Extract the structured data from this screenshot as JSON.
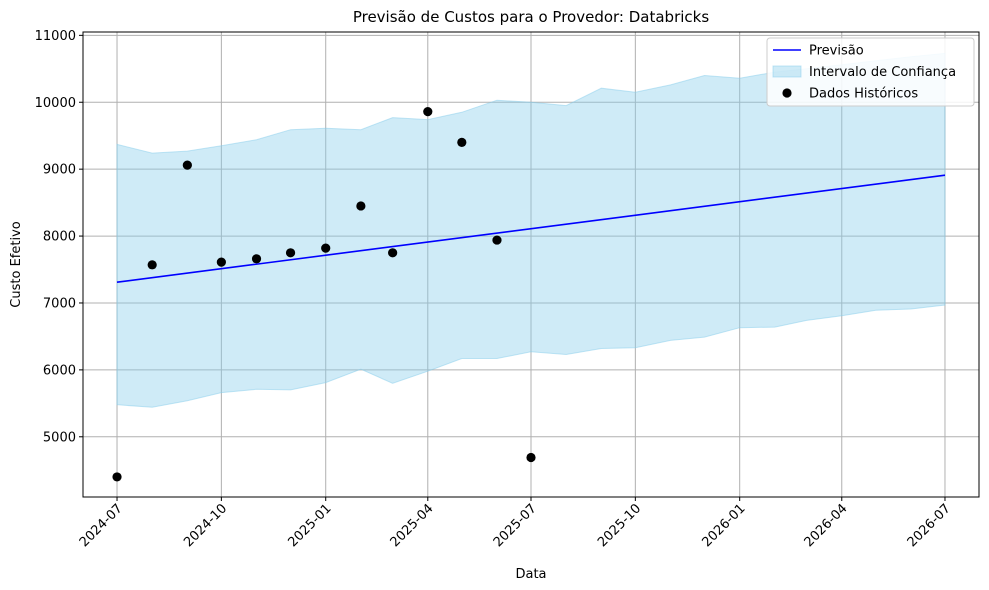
{
  "chart_data": {
    "type": "line",
    "title": "Previsão de Custos para o Provedor: Databricks",
    "xlabel": "Data",
    "ylabel": "Custo Efetivo",
    "xlim": [
      "2024-06-01",
      "2026-07-31"
    ],
    "ylim": [
      4100,
      11050
    ],
    "x_ticks": [
      "2024-07",
      "2024-10",
      "2025-01",
      "2025-04",
      "2025-07",
      "2025-10",
      "2026-01",
      "2026-04",
      "2026-07"
    ],
    "y_ticks": [
      5000,
      6000,
      7000,
      8000,
      9000,
      10000,
      11000
    ],
    "grid": true,
    "legend_position": "top-right",
    "legend": [
      "Previsão",
      "Intervalo de Confiança",
      "Dados Históricos"
    ],
    "colors": {
      "forecast_line": "#0000ff",
      "confidence_band": "#87ceeb",
      "historical_points": "#000000",
      "grid": "#b0b0b0"
    },
    "forecast": {
      "name": "Previsão",
      "x": [
        "2024-07-01",
        "2026-07-01"
      ],
      "y": [
        7310,
        8910
      ]
    },
    "confidence_interval": {
      "name": "Intervalo de Confiança",
      "x": [
        "2024-07-01",
        "2024-08-01",
        "2024-09-01",
        "2024-10-01",
        "2024-11-01",
        "2024-12-01",
        "2025-01-01",
        "2025-02-01",
        "2025-03-01",
        "2025-04-01",
        "2025-05-01",
        "2025-06-01",
        "2025-07-01",
        "2025-08-01",
        "2025-09-01",
        "2025-10-01",
        "2025-11-01",
        "2025-12-01",
        "2026-01-01",
        "2026-02-01",
        "2026-03-01",
        "2026-04-01",
        "2026-05-01",
        "2026-06-01",
        "2026-07-01"
      ],
      "upper": [
        9370,
        9240,
        9270,
        9350,
        9440,
        9590,
        9610,
        9590,
        9770,
        9740,
        9850,
        10030,
        10000,
        9950,
        10210,
        10150,
        10260,
        10400,
        10360,
        10450,
        10500,
        10560,
        10620,
        10680,
        10730
      ],
      "lower": [
        5480,
        5440,
        5540,
        5660,
        5710,
        5700,
        5810,
        6010,
        5800,
        5980,
        6170,
        6170,
        6270,
        6230,
        6320,
        6330,
        6440,
        6490,
        6630,
        6640,
        6740,
        6810,
        6890,
        6910,
        6970
      ]
    },
    "historical": {
      "name": "Dados Históricos",
      "x": [
        "2024-07-01",
        "2024-08-01",
        "2024-09-01",
        "2024-10-01",
        "2024-11-01",
        "2024-12-01",
        "2025-01-01",
        "2025-02-01",
        "2025-03-01",
        "2025-04-01",
        "2025-05-01",
        "2025-06-01",
        "2025-07-01"
      ],
      "y": [
        4400,
        7570,
        9060,
        7610,
        7660,
        7750,
        7820,
        8450,
        7750,
        9860,
        9400,
        7940,
        4690
      ]
    }
  }
}
